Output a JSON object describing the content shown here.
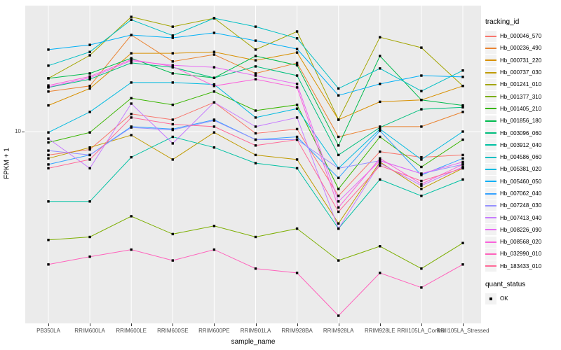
{
  "figure": {
    "background": "#FFFFFF",
    "panel_background": "#EBEBEB",
    "grid_color": "#FFFFFF",
    "tick_text_color": "#4D4D4D"
  },
  "axes": {
    "x_title": "sample_name",
    "y_title": "FPKM + 1",
    "y_tick_label": "10"
  },
  "legend": {
    "tracking_title": "tracking_id",
    "quant_title": "quant_status",
    "quant_items": [
      {
        "label": "OK",
        "marker": "filled-square",
        "color": "#000000"
      }
    ]
  },
  "chart_data": {
    "type": "line",
    "title": "",
    "xlabel": "sample_name",
    "ylabel": "FPKM + 1",
    "y_scale": "log10",
    "y_breaks": [
      10
    ],
    "ylim_approx": [
      1.05,
      44
    ],
    "grid": "major-on",
    "legend_position": "right",
    "point_shape": "filled-square",
    "quant_status": "OK",
    "categories": [
      "PB350LA",
      "RRIM600LA",
      "RRIM600LE",
      "RRIM600SE",
      "RRIM600PE",
      "RRIM901LA",
      "RRIM928BA",
      "RRIM928LA",
      "RRIM928LE",
      "RRII105LA_Control",
      "RRII105LA_Stressed"
    ],
    "series": [
      {
        "name": "Hb_000046_570",
        "color": "#F8766D",
        "values": [
          7.6,
          8.1,
          12.3,
          11.5,
          14.1,
          9.8,
          10.3,
          4.7,
          7.9,
          7.4,
          7.6
        ]
      },
      {
        "name": "Hb_000236_490",
        "color": "#EA8331",
        "values": [
          16.0,
          17.1,
          31.1,
          22.8,
          24.7,
          19.8,
          22.4,
          9.4,
          10.6,
          10.6,
          12.6
        ]
      },
      {
        "name": "Hb_000731_220",
        "color": "#D89000",
        "values": [
          13.6,
          16.6,
          25.1,
          25.1,
          25.5,
          23.1,
          25.3,
          11.5,
          14.2,
          14.5,
          17.1
        ]
      },
      {
        "name": "Hb_000737_030",
        "color": "#C09B00",
        "values": [
          7.3,
          8.3,
          9.6,
          7.2,
          9.9,
          7.6,
          7.2,
          3.4,
          7.0,
          5.1,
          6.5
        ]
      },
      {
        "name": "Hb_001241_010",
        "color": "#A3A500",
        "values": [
          18.7,
          24.5,
          38.5,
          34.3,
          37.9,
          26.2,
          32.4,
          11.5,
          30.3,
          26.8,
          17.1
        ]
      },
      {
        "name": "Hb_001377_310",
        "color": "#7CAE00",
        "values": [
          2.8,
          2.9,
          3.7,
          3.0,
          3.3,
          2.9,
          3.2,
          2.2,
          2.6,
          2.0,
          2.7
        ]
      },
      {
        "name": "Hb_001405_210",
        "color": "#39B600",
        "values": [
          8.8,
          9.9,
          14.8,
          13.7,
          16.0,
          12.8,
          13.7,
          5.1,
          9.4,
          6.6,
          9.1
        ]
      },
      {
        "name": "Hb_001856_180",
        "color": "#00BB4E",
        "values": [
          18.7,
          19.8,
          23.7,
          19.8,
          18.8,
          24.3,
          21.8,
          8.5,
          24.3,
          14.5,
          13.6
        ]
      },
      {
        "name": "Hb_003096_060",
        "color": "#00BF7D",
        "values": [
          16.8,
          18.5,
          22.4,
          21.3,
          18.8,
          21.5,
          19.3,
          7.6,
          10.5,
          13.0,
          13.3
        ]
      },
      {
        "name": "Hb_003912_040",
        "color": "#00C1A3",
        "values": [
          4.4,
          4.4,
          7.4,
          9.4,
          8.3,
          6.9,
          6.5,
          3.2,
          5.7,
          4.7,
          5.7
        ]
      },
      {
        "name": "Hb_004586_060",
        "color": "#00BFC4",
        "values": [
          21.7,
          25.5,
          37.2,
          30.9,
          37.9,
          34.3,
          29.9,
          16.6,
          21.0,
          16.1,
          20.5
        ]
      },
      {
        "name": "Hb_005381_020",
        "color": "#00BAE0",
        "values": [
          9.9,
          12.6,
          17.8,
          17.8,
          17.4,
          11.8,
          13.1,
          6.5,
          10.3,
          7.2,
          10.0
        ]
      },
      {
        "name": "Hb_005460_050",
        "color": "#00B0F6",
        "values": [
          26.2,
          27.7,
          31.1,
          30.1,
          31.9,
          29.1,
          26.4,
          15.3,
          17.5,
          19.3,
          19.0
        ]
      },
      {
        "name": "Hb_007062_040",
        "color": "#35A2FF",
        "values": [
          6.8,
          7.6,
          10.6,
          10.3,
          11.5,
          9.1,
          9.4,
          5.8,
          10.1,
          6.0,
          7.3
        ]
      },
      {
        "name": "Hb_007248_030",
        "color": "#9590FF",
        "values": [
          8.0,
          7.6,
          10.5,
          10.2,
          11.4,
          9.1,
          9.1,
          6.5,
          7.1,
          6.1,
          6.8
        ]
      },
      {
        "name": "Hb_007413_040",
        "color": "#C77CFF",
        "values": [
          9.2,
          6.5,
          13.9,
          8.7,
          14.1,
          10.6,
          11.8,
          3.2,
          6.9,
          5.3,
          6.6
        ]
      },
      {
        "name": "Hb_008226_090",
        "color": "#E76BF3",
        "values": [
          16.9,
          18.8,
          23.0,
          21.8,
          21.3,
          19.3,
          17.5,
          4.4,
          7.1,
          6.1,
          7.0
        ]
      },
      {
        "name": "Hb_008568_020",
        "color": "#FA62DB",
        "values": [
          17.2,
          19.1,
          23.3,
          21.5,
          17.1,
          18.5,
          16.8,
          4.1,
          7.3,
          5.4,
          6.8
        ]
      },
      {
        "name": "Hb_032990_010",
        "color": "#FF62BC",
        "values": [
          2.1,
          2.3,
          2.5,
          2.2,
          2.5,
          2.0,
          1.9,
          1.15,
          1.9,
          1.6,
          2.1
        ]
      },
      {
        "name": "Hb_183433_010",
        "color": "#FF6A98",
        "values": [
          6.5,
          7.2,
          11.8,
          10.9,
          10.6,
          8.5,
          9.1,
          3.9,
          6.7,
          5.6,
          6.5
        ]
      }
    ]
  }
}
